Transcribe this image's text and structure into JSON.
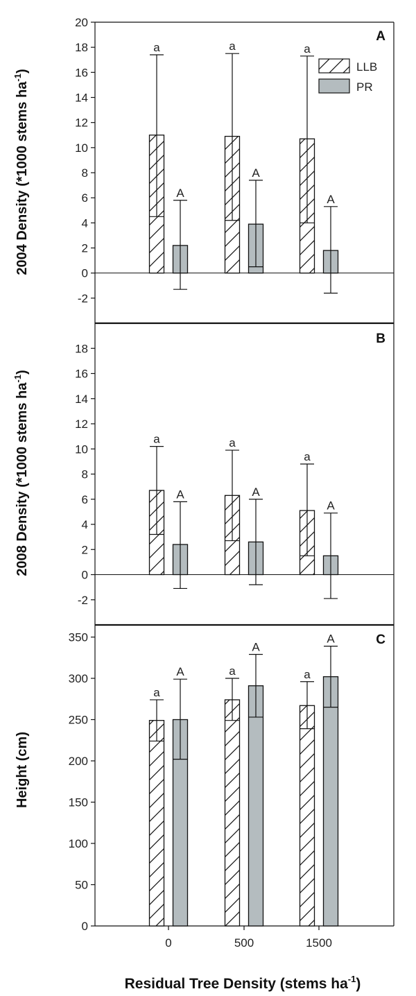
{
  "chart_data": [
    {
      "panel": "A",
      "type": "bar",
      "ylabel_main": "2004 Density (*1000 stems ha",
      "ylabel_sup": "-1",
      "ylabel_end": ")",
      "ylim": [
        -4,
        20
      ],
      "yticks": [
        -2,
        0,
        2,
        4,
        6,
        8,
        10,
        12,
        14,
        16,
        18,
        20
      ],
      "categories": [
        "0",
        "500",
        "1500"
      ],
      "series": [
        {
          "name": "LLB",
          "values": [
            11.0,
            10.9,
            10.7
          ],
          "err_low": [
            4.5,
            4.2,
            4.0
          ],
          "err_high": [
            17.4,
            17.5,
            17.3
          ],
          "letters": [
            "a",
            "a",
            "a"
          ]
        },
        {
          "name": "PR",
          "values": [
            2.2,
            3.9,
            1.8
          ],
          "err_low": [
            -1.3,
            0.5,
            -1.6
          ],
          "err_high": [
            5.8,
            7.4,
            5.3
          ],
          "letters": [
            "A",
            "A",
            "A"
          ]
        }
      ],
      "legend": "top-right"
    },
    {
      "panel": "B",
      "type": "bar",
      "ylabel_main": "2008 Density (*1000 stems ha",
      "ylabel_sup": "-1",
      "ylabel_end": ")",
      "ylim": [
        -4,
        20
      ],
      "yticks": [
        -2,
        0,
        2,
        4,
        6,
        8,
        10,
        12,
        14,
        16,
        18
      ],
      "categories": [
        "0",
        "500",
        "1500"
      ],
      "series": [
        {
          "name": "LLB",
          "values": [
            6.7,
            6.3,
            5.1
          ],
          "err_low": [
            3.2,
            2.7,
            1.5
          ],
          "err_high": [
            10.2,
            9.9,
            8.8
          ],
          "letters": [
            "a",
            "a",
            "a"
          ]
        },
        {
          "name": "PR",
          "values": [
            2.4,
            2.6,
            1.5
          ],
          "err_low": [
            -1.1,
            -0.8,
            -1.9
          ],
          "err_high": [
            5.8,
            6.0,
            4.9
          ],
          "letters": [
            "A",
            "A",
            "A"
          ]
        }
      ]
    },
    {
      "panel": "C",
      "type": "bar",
      "ylabel_main": "Height (cm)",
      "ylabel_sup": "",
      "ylabel_end": "",
      "ylim": [
        0,
        390
      ],
      "yticks": [
        0,
        50,
        100,
        150,
        200,
        250,
        300,
        350
      ],
      "categories": [
        "0",
        "500",
        "1500"
      ],
      "series": [
        {
          "name": "LLB",
          "values": [
            249,
            274,
            267
          ],
          "err_low": [
            224,
            249,
            239
          ],
          "err_high": [
            274,
            300,
            296
          ],
          "letters": [
            "a",
            "a",
            "a"
          ]
        },
        {
          "name": "PR",
          "values": [
            250,
            291,
            302
          ],
          "err_low": [
            202,
            253,
            265
          ],
          "err_high": [
            299,
            329,
            339
          ],
          "letters": [
            "A",
            "A",
            "A"
          ]
        }
      ]
    }
  ],
  "xlabel_main": "Residual Tree Density (stems ha",
  "xlabel_sup": "-1",
  "xlabel_end": ")",
  "colors": {
    "llb_fill": "#ffffff",
    "pr_fill": "#b4bcbf",
    "stroke": "#111111"
  }
}
